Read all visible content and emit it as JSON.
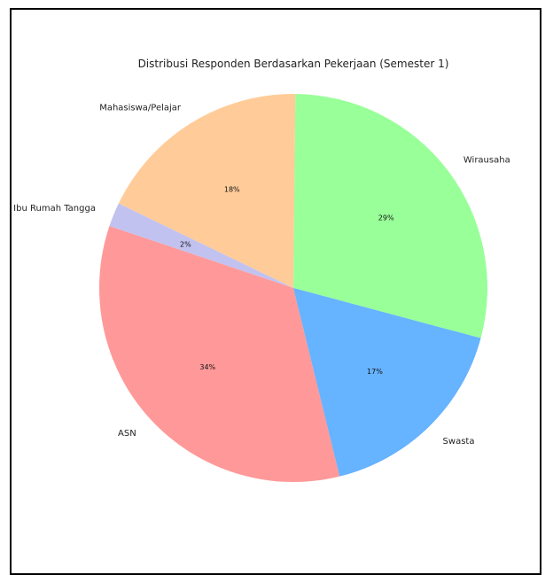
{
  "chart_data": {
    "type": "pie",
    "title": "Distribusi Responden Berdasarkan Pekerjaan (Semester 1)",
    "slices": [
      {
        "label": "Wirausaha",
        "pct_label": "29%",
        "value": 29,
        "color": "#99ff99"
      },
      {
        "label": "Mahasiswa/Pelajar",
        "pct_label": "18%",
        "value": 18,
        "color": "#ffcc99"
      },
      {
        "label": "Ibu Rumah Tangga",
        "pct_label": "2%",
        "value": 2,
        "color": "#c2c2f0"
      },
      {
        "label": "ASN",
        "pct_label": "34%",
        "value": 34,
        "color": "#ff9999"
      },
      {
        "label": "Swasta",
        "pct_label": "17%",
        "value": 17,
        "color": "#66b3ff"
      }
    ],
    "start_angle_deg": -15,
    "direction": "counterclockwise"
  }
}
